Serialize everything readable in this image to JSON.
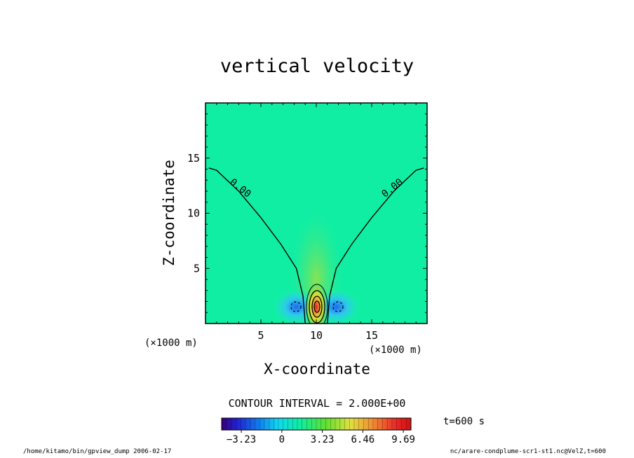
{
  "chart_data": {
    "type": "heatmap",
    "title": "vertical velocity",
    "xlabel": "X-coordinate",
    "ylabel": "Z-coordinate",
    "x_unit_label": "(×1000 m)",
    "y_unit_label": "(×1000 m)",
    "xlim": [
      0,
      20
    ],
    "ylim": [
      0,
      20
    ],
    "x_ticks": [
      5,
      10,
      15
    ],
    "y_ticks": [
      5,
      10,
      15
    ],
    "contour_interval_label": "CONTOUR INTERVAL = 2.000E+00",
    "contour_labels": [
      "0.00",
      "0.00"
    ],
    "zero_contour": {
      "left": [
        [
          0.3,
          14.1
        ],
        [
          1.0,
          13.9
        ],
        [
          3.0,
          12.0
        ],
        [
          5.0,
          9.6
        ],
        [
          6.8,
          7.2
        ],
        [
          8.2,
          5.0
        ],
        [
          8.8,
          2.5
        ],
        [
          9.0,
          0.0
        ]
      ],
      "right": [
        [
          19.7,
          14.1
        ],
        [
          19.0,
          13.9
        ],
        [
          17.0,
          12.0
        ],
        [
          15.0,
          9.6
        ],
        [
          13.2,
          7.2
        ],
        [
          11.8,
          5.0
        ],
        [
          11.2,
          2.5
        ],
        [
          11.0,
          0.0
        ]
      ]
    },
    "features": [
      {
        "kind": "updraft",
        "x": 10.0,
        "z": 1.5,
        "peak": 9.69
      },
      {
        "kind": "downdraft",
        "x": 8.2,
        "z": 1.5
      },
      {
        "kind": "downdraft",
        "x": 11.8,
        "z": 1.5
      }
    ],
    "colorbar": {
      "min": -4.8,
      "max": 10.3,
      "tick_labels": [
        "−3.23",
        "0",
        "3.23",
        "6.46",
        "9.69"
      ],
      "tick_values": [
        -3.23,
        0,
        3.23,
        6.46,
        9.69
      ]
    },
    "time_label": "t=600 s"
  },
  "footer": {
    "left": "/home/kitamo/bin/gpview_dump  2006-02-17",
    "right": "nc/arare-condplume-scr1-st1.nc@VelZ,t=600"
  }
}
